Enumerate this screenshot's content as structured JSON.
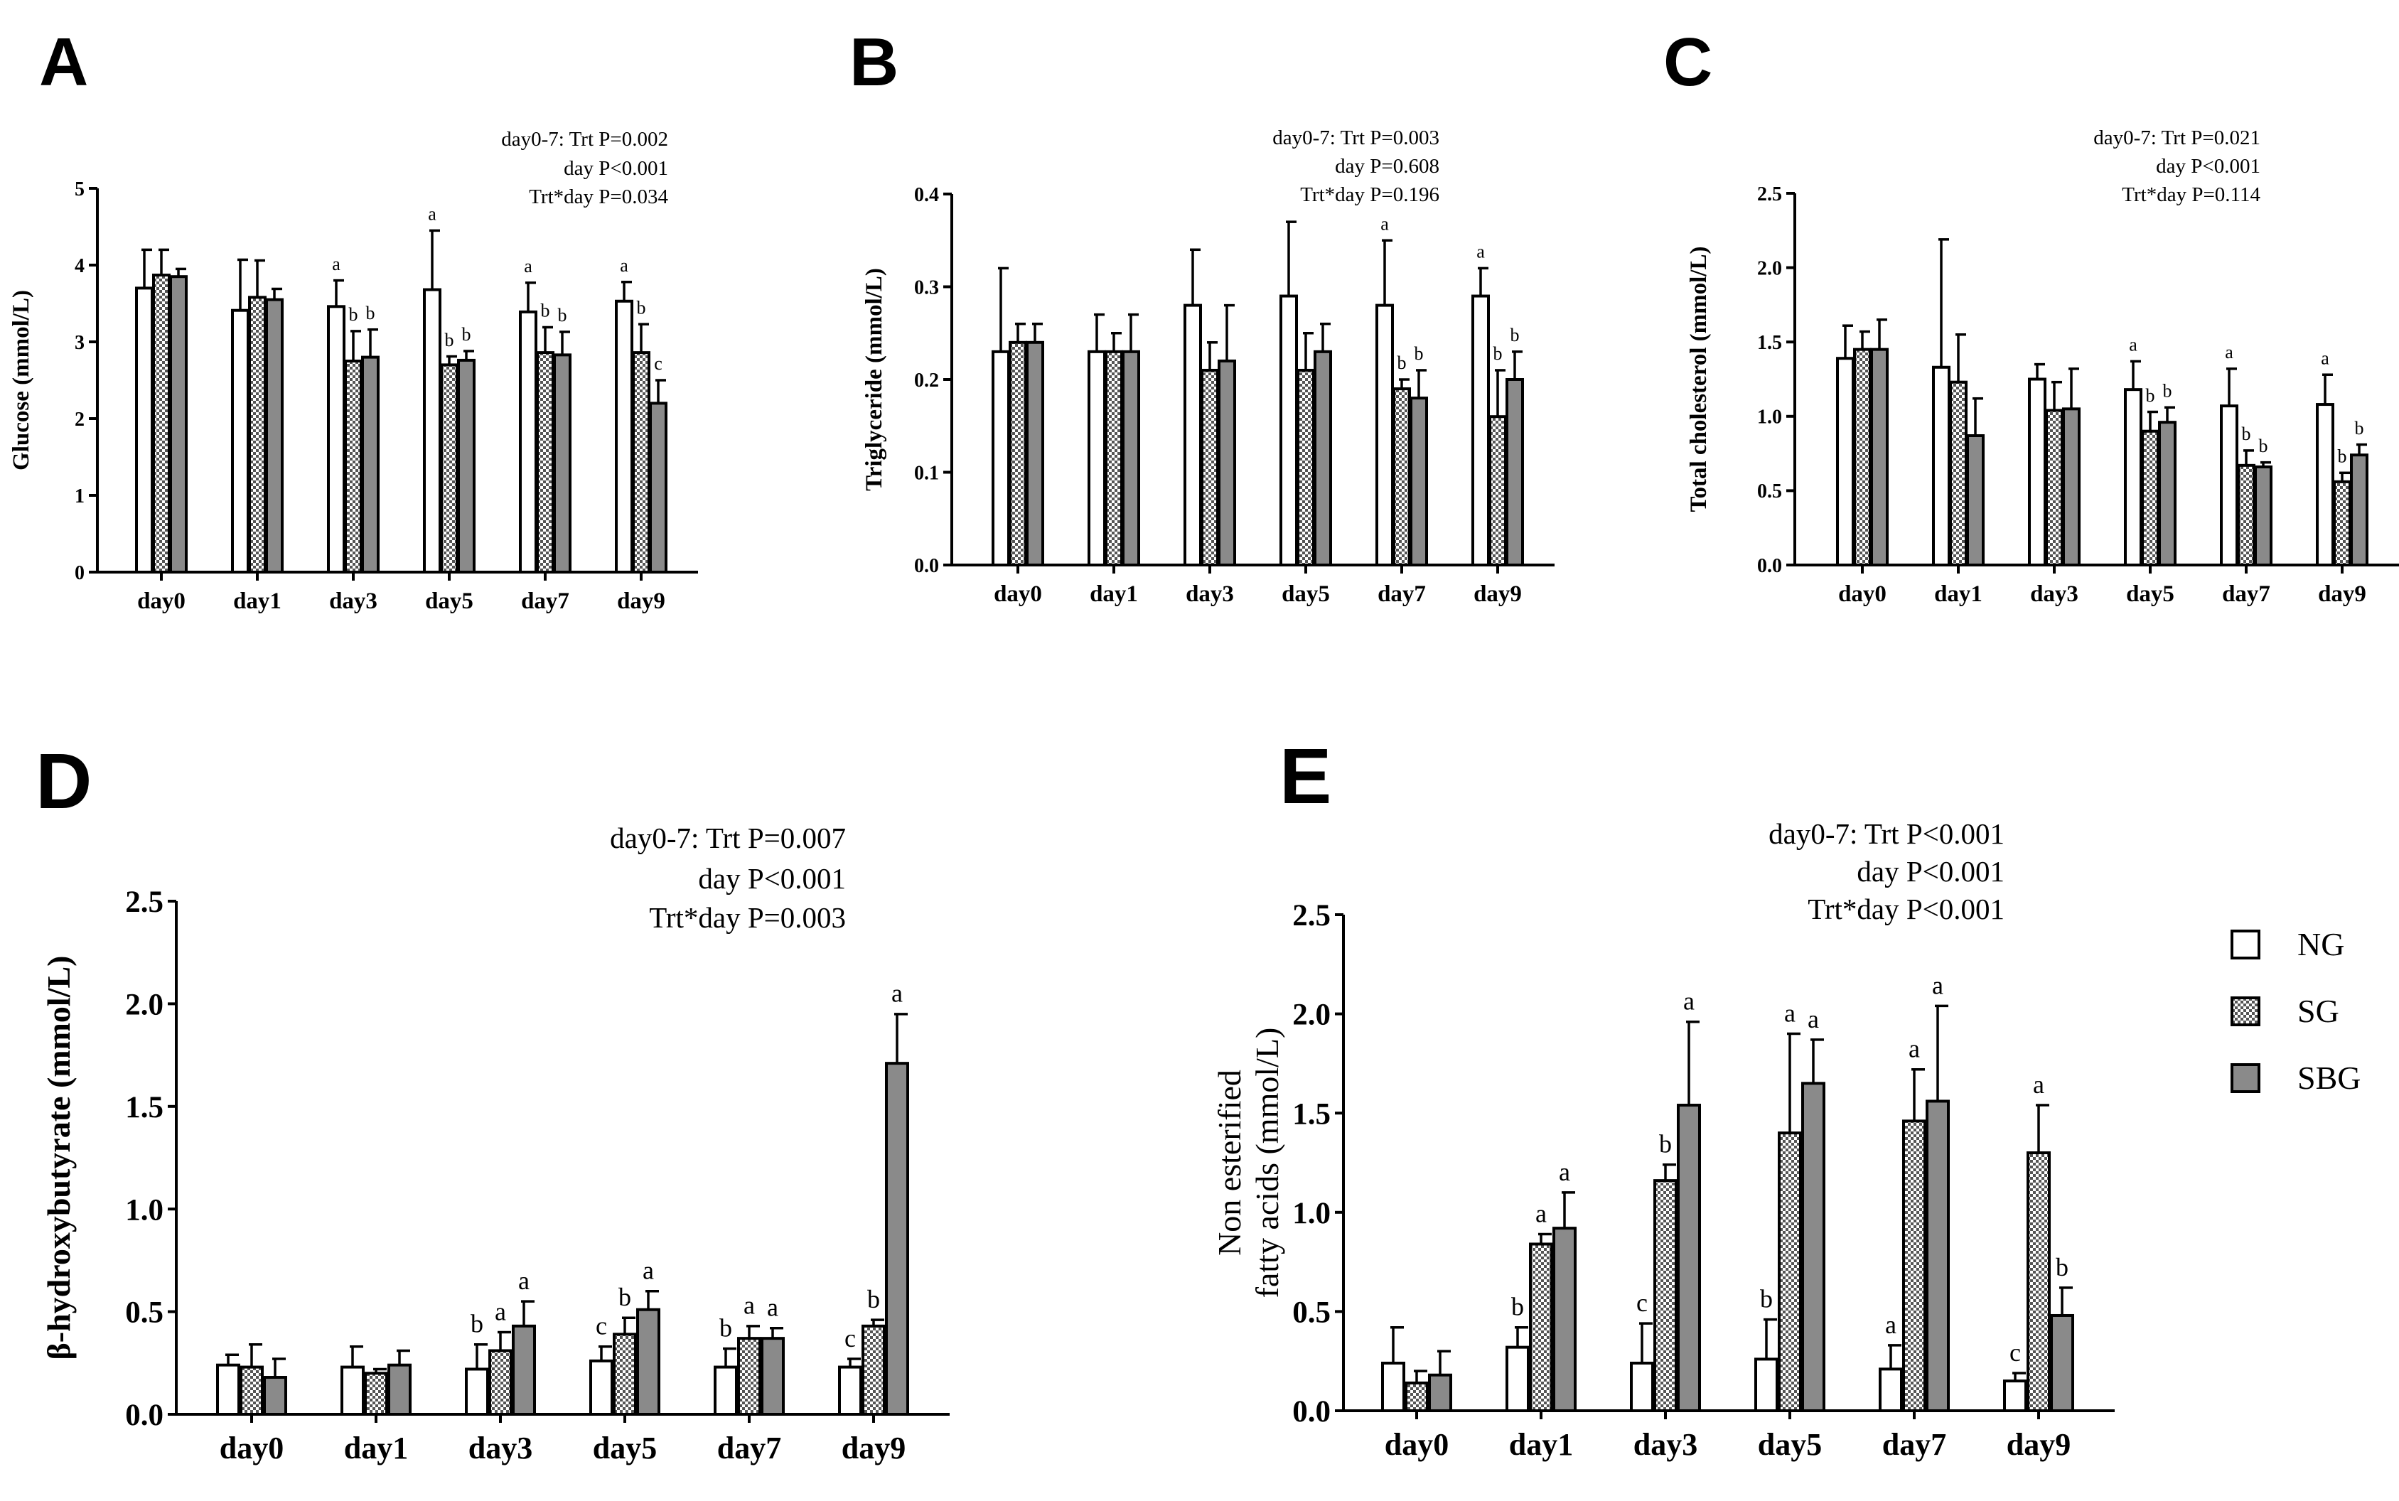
{
  "legend": [
    {
      "key": "NG",
      "label": "NG"
    },
    {
      "key": "SG",
      "label": "SG"
    },
    {
      "key": "SBG",
      "label": "SBG"
    }
  ],
  "colors": {
    "NG": "#ffffff",
    "SG_light": "#ffffff",
    "SG_dark": "#555555",
    "SBG": "#8a8a8a",
    "stroke": "#000000"
  },
  "chart_data": [
    {
      "id": "A",
      "type": "bar",
      "panel_label": "A",
      "ylabel": "Glucose (mmol/L)",
      "ylim": [
        0,
        5
      ],
      "yticks": [
        0,
        1,
        2,
        3,
        4,
        5
      ],
      "tick_decimals": 0,
      "categories": [
        "day0",
        "day1",
        "day3",
        "day5",
        "day7",
        "day9"
      ],
      "stats": [
        "day0-7: Trt P=0.002",
        "day P<0.001",
        "Trt*day P=0.034"
      ],
      "series": [
        {
          "name": "NG",
          "values": [
            3.7,
            3.41,
            3.46,
            3.68,
            3.39,
            3.53
          ],
          "errors": [
            0.5,
            0.66,
            0.34,
            0.77,
            0.38,
            0.25
          ],
          "letters": [
            "",
            "",
            "a",
            "a",
            "a",
            "a"
          ]
        },
        {
          "name": "SG",
          "values": [
            3.87,
            3.58,
            2.75,
            2.7,
            2.86,
            2.86
          ],
          "errors": [
            0.33,
            0.48,
            0.39,
            0.11,
            0.33,
            0.37
          ],
          "letters": [
            "",
            "",
            "b",
            "b",
            "b",
            "b"
          ]
        },
        {
          "name": "SBG",
          "values": [
            3.85,
            3.55,
            2.8,
            2.76,
            2.83,
            2.2
          ],
          "errors": [
            0.1,
            0.14,
            0.36,
            0.12,
            0.3,
            0.3
          ],
          "letters": [
            "",
            "",
            "b",
            "b",
            "b",
            "c"
          ]
        }
      ]
    },
    {
      "id": "B",
      "type": "bar",
      "panel_label": "B",
      "ylabel": "Triglyceride (mmol/L)",
      "ylim": [
        0,
        0.4
      ],
      "yticks": [
        0,
        0.1,
        0.2,
        0.3,
        0.4
      ],
      "tick_decimals": 1,
      "categories": [
        "day0",
        "day1",
        "day3",
        "day5",
        "day7",
        "day9"
      ],
      "stats": [
        "day0-7: Trt P=0.003",
        "day P=0.608",
        "Trt*day P=0.196"
      ],
      "series": [
        {
          "name": "NG",
          "values": [
            0.23,
            0.23,
            0.28,
            0.29,
            0.28,
            0.29
          ],
          "errors": [
            0.09,
            0.04,
            0.06,
            0.08,
            0.07,
            0.03
          ],
          "letters": [
            "",
            "",
            "",
            "",
            "a",
            "a"
          ]
        },
        {
          "name": "SG",
          "values": [
            0.24,
            0.23,
            0.21,
            0.21,
            0.19,
            0.16
          ],
          "errors": [
            0.02,
            0.02,
            0.03,
            0.04,
            0.01,
            0.05
          ],
          "letters": [
            "",
            "",
            "",
            "",
            "b",
            "b"
          ]
        },
        {
          "name": "SBG",
          "values": [
            0.24,
            0.23,
            0.22,
            0.23,
            0.18,
            0.2
          ],
          "errors": [
            0.02,
            0.04,
            0.06,
            0.03,
            0.03,
            0.03
          ],
          "letters": [
            "",
            "",
            "",
            "",
            "b",
            "b"
          ]
        }
      ]
    },
    {
      "id": "C",
      "type": "bar",
      "panel_label": "C",
      "ylabel": "Total cholesterol (mmol/L)",
      "ylim": [
        0,
        2.5
      ],
      "yticks": [
        0,
        0.5,
        1.0,
        1.5,
        2.0,
        2.5
      ],
      "tick_decimals": 1,
      "categories": [
        "day0",
        "day1",
        "day3",
        "day5",
        "day7",
        "day9"
      ],
      "stats": [
        "day0-7: Trt P=0.021",
        "day P<0.001",
        "Trt*day P=0.114"
      ],
      "series": [
        {
          "name": "NG",
          "values": [
            1.39,
            1.33,
            1.25,
            1.18,
            1.07,
            1.08
          ],
          "errors": [
            0.22,
            0.86,
            0.1,
            0.19,
            0.25,
            0.2
          ],
          "letters": [
            "",
            "",
            "",
            "a",
            "a",
            "a"
          ]
        },
        {
          "name": "SG",
          "values": [
            1.45,
            1.23,
            1.04,
            0.9,
            0.67,
            0.56
          ],
          "errors": [
            0.12,
            0.32,
            0.19,
            0.13,
            0.1,
            0.06
          ],
          "letters": [
            "",
            "",
            "",
            "b",
            "b",
            "b"
          ]
        },
        {
          "name": "SBG",
          "values": [
            1.45,
            0.87,
            1.05,
            0.96,
            0.66,
            0.74
          ],
          "errors": [
            0.2,
            0.25,
            0.27,
            0.1,
            0.03,
            0.07
          ],
          "letters": [
            "",
            "",
            "",
            "b",
            "b",
            "b"
          ]
        }
      ]
    },
    {
      "id": "D",
      "type": "bar",
      "panel_label": "D",
      "ylabel": "β-hydroxybutyrate (mmol/L)",
      "ylim": [
        0,
        2.5
      ],
      "yticks": [
        0,
        0.5,
        1.0,
        1.5,
        2.0,
        2.5
      ],
      "tick_decimals": 1,
      "categories": [
        "day0",
        "day1",
        "day3",
        "day5",
        "day7",
        "day9"
      ],
      "stats": [
        "day0-7: Trt P=0.007",
        "day P<0.001",
        "Trt*day P=0.003"
      ],
      "series": [
        {
          "name": "NG",
          "values": [
            0.24,
            0.23,
            0.22,
            0.26,
            0.23,
            0.23
          ],
          "errors": [
            0.05,
            0.1,
            0.12,
            0.07,
            0.09,
            0.04
          ],
          "letters": [
            "",
            "",
            "b",
            "c",
            "b",
            "c"
          ]
        },
        {
          "name": "SG",
          "values": [
            0.23,
            0.2,
            0.31,
            0.39,
            0.37,
            0.43
          ],
          "errors": [
            0.11,
            0.02,
            0.09,
            0.08,
            0.06,
            0.03
          ],
          "letters": [
            "",
            "",
            "a",
            "b",
            "a",
            "b"
          ]
        },
        {
          "name": "SBG",
          "values": [
            0.18,
            0.24,
            0.43,
            0.51,
            0.37,
            1.71
          ],
          "errors": [
            0.09,
            0.07,
            0.12,
            0.09,
            0.05,
            0.24
          ],
          "letters": [
            "",
            "",
            "a",
            "a",
            "a",
            "a"
          ]
        }
      ]
    },
    {
      "id": "E",
      "type": "bar",
      "panel_label": "E",
      "ylabel_lines": [
        "Non esterified",
        "fatty acids (mmol/L)"
      ],
      "ylim": [
        0,
        2.5
      ],
      "yticks": [
        0,
        0.5,
        1.0,
        1.5,
        2.0,
        2.5
      ],
      "tick_decimals": 1,
      "categories": [
        "day0",
        "day1",
        "day3",
        "day5",
        "day7",
        "day9"
      ],
      "stats": [
        "day0-7: Trt P<0.001",
        "day P<0.001",
        "Trt*day P<0.001"
      ],
      "series": [
        {
          "name": "NG",
          "values": [
            0.24,
            0.32,
            0.24,
            0.26,
            0.21,
            0.15
          ],
          "errors": [
            0.18,
            0.1,
            0.2,
            0.2,
            0.12,
            0.04
          ],
          "letters": [
            "",
            "b",
            "c",
            "b",
            "a",
            "c"
          ]
        },
        {
          "name": "SG",
          "values": [
            0.14,
            0.84,
            1.16,
            1.4,
            1.46,
            1.3
          ],
          "errors": [
            0.06,
            0.05,
            0.08,
            0.5,
            0.26,
            0.24
          ],
          "letters": [
            "",
            "a",
            "b",
            "a",
            "a",
            "a"
          ]
        },
        {
          "name": "SBG",
          "values": [
            0.18,
            0.92,
            1.54,
            1.65,
            1.56,
            0.48
          ],
          "errors": [
            0.12,
            0.18,
            0.42,
            0.22,
            0.48,
            0.14
          ],
          "letters": [
            "",
            "a",
            "a",
            "a",
            "a",
            "b"
          ]
        }
      ]
    }
  ]
}
